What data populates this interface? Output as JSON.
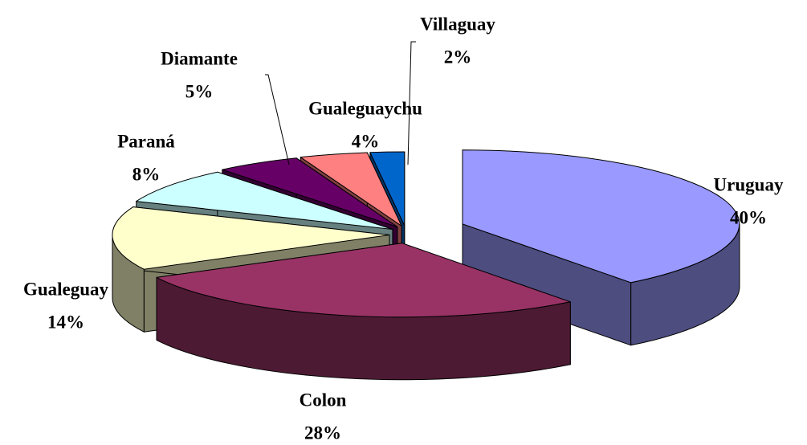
{
  "chart_data": {
    "type": "pie",
    "categories": [
      "Uruguay",
      "Colon",
      "Gualeguay",
      "Paraná",
      "Diamante",
      "Gualeguaychu",
      "Villaguay"
    ],
    "values": [
      40,
      28,
      14,
      8,
      5,
      4,
      2
    ],
    "value_labels": [
      "40%",
      "28%",
      "14%",
      "8%",
      "5%",
      "4%",
      "2%"
    ],
    "colors": [
      "#9999ff",
      "#993366",
      "#ffffcc",
      "#ccffff",
      "#660066",
      "#ff8080",
      "#0066cc"
    ]
  }
}
